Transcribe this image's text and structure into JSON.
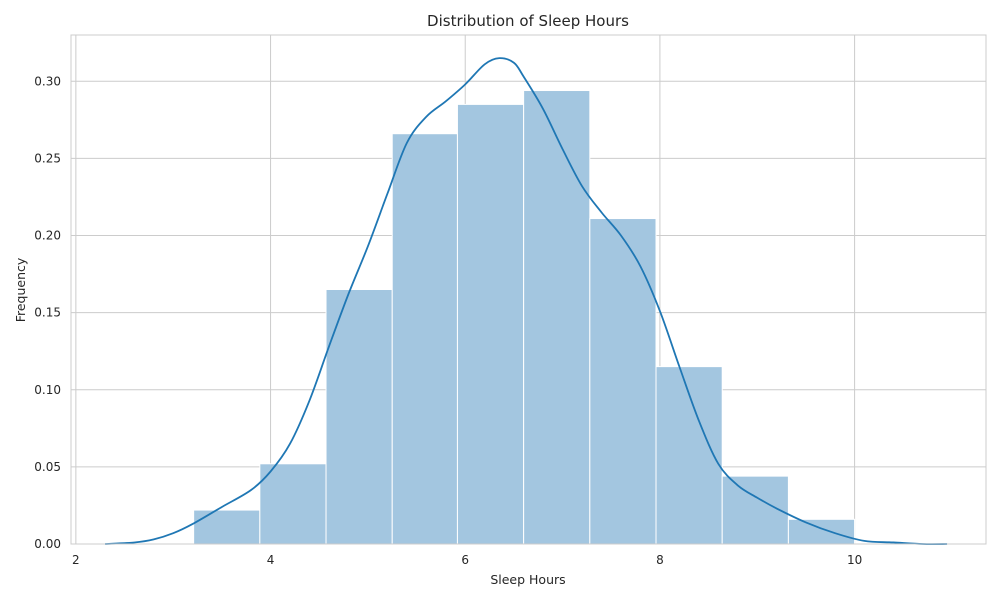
{
  "chart_data": {
    "type": "bar",
    "title": "Distribution of Sleep Hours",
    "xlabel": "Sleep Hours",
    "ylabel": "Frequency",
    "xlim": [
      1.95,
      11.35
    ],
    "ylim": [
      0,
      0.33
    ],
    "xticks": [
      2,
      4,
      6,
      8,
      10
    ],
    "xtick_labels": [
      "2",
      "4",
      "6",
      "8",
      "10"
    ],
    "yticks": [
      0,
      0.05,
      0.1,
      0.15,
      0.2,
      0.25,
      0.3
    ],
    "ytick_labels": [
      "0.00",
      "0.05",
      "0.10",
      "0.15",
      "0.20",
      "0.25",
      "0.30"
    ],
    "grid": true,
    "bins": [
      {
        "x0": 3.21,
        "x1": 3.89,
        "value": 0.022
      },
      {
        "x0": 3.89,
        "x1": 4.57,
        "value": 0.052
      },
      {
        "x0": 4.57,
        "x1": 5.25,
        "value": 0.165
      },
      {
        "x0": 5.25,
        "x1": 5.92,
        "value": 0.266
      },
      {
        "x0": 5.92,
        "x1": 6.6,
        "value": 0.285
      },
      {
        "x0": 6.6,
        "x1": 7.28,
        "value": 0.294
      },
      {
        "x0": 7.28,
        "x1": 7.96,
        "value": 0.211
      },
      {
        "x0": 7.96,
        "x1": 8.64,
        "value": 0.115
      },
      {
        "x0": 8.64,
        "x1": 9.32,
        "value": 0.044
      },
      {
        "x0": 9.32,
        "x1": 10.0,
        "value": 0.016
      }
    ],
    "kde": {
      "x": [
        2.3,
        2.6,
        2.8,
        3.0,
        3.2,
        3.5,
        3.8,
        4.0,
        4.2,
        4.4,
        4.6,
        4.8,
        5.0,
        5.2,
        5.4,
        5.6,
        5.8,
        6.0,
        6.2,
        6.35,
        6.5,
        6.6,
        6.8,
        7.0,
        7.2,
        7.4,
        7.6,
        7.8,
        8.0,
        8.2,
        8.4,
        8.6,
        8.8,
        9.0,
        9.2,
        9.5,
        9.8,
        10.1,
        10.4,
        10.7,
        10.95
      ],
      "y": [
        0.0,
        0.001,
        0.003,
        0.007,
        0.013,
        0.024,
        0.035,
        0.047,
        0.065,
        0.093,
        0.128,
        0.162,
        0.193,
        0.227,
        0.26,
        0.277,
        0.287,
        0.298,
        0.311,
        0.315,
        0.312,
        0.303,
        0.282,
        0.256,
        0.232,
        0.215,
        0.2,
        0.18,
        0.151,
        0.115,
        0.08,
        0.052,
        0.038,
        0.03,
        0.023,
        0.014,
        0.007,
        0.002,
        0.001,
        0.0,
        0.0
      ]
    },
    "colors": {
      "bar_fill": "#a3c6e0",
      "bar_edge": "#ffffff",
      "kde_line": "#1f77b4",
      "grid": "#cccccc",
      "text": "#262626"
    }
  }
}
